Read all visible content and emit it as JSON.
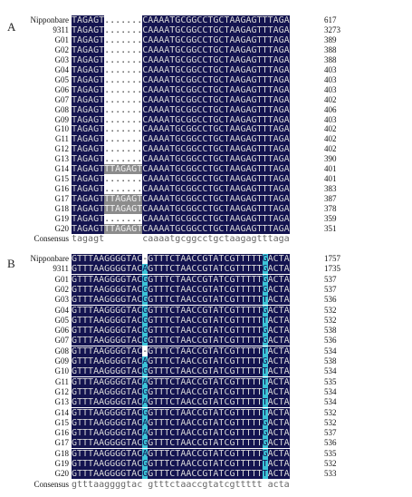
{
  "panel_a": {
    "label": "A",
    "rows": [
      {
        "name": "Nipponbare",
        "sequence": "TAGAGT.......CAAAATGCGGCCTGCTAAGAGTTTAGA",
        "length": 617
      },
      {
        "name": "9311",
        "sequence": "TAGAGT.......CAAAATGCGGCCTGCTAAGAGTTTAGA",
        "length": 3273
      },
      {
        "name": "G01",
        "sequence": "TAGAGT.......CAAAATGCGGCCTGCTAAGAGTTTAGA",
        "length": 389
      },
      {
        "name": "G02",
        "sequence": "TAGAGT.......CAAAATGCGGCCTGCTAAGAGTTTAGA",
        "length": 388
      },
      {
        "name": "G03",
        "sequence": "TAGAGT.......CAAAATGCGGCCTGCTAAGAGTTTAGA",
        "length": 388
      },
      {
        "name": "G04",
        "sequence": "TAGAGT.......CAAAATGCGGCCTGCTAAGAGTTTAGA",
        "length": 403
      },
      {
        "name": "G05",
        "sequence": "TAGAGT.......CAAAATGCGGCCTGCTAAGAGTTTAGA",
        "length": 403
      },
      {
        "name": "G06",
        "sequence": "TAGAGT.......CAAAATGCGGCCTGCTAAGAGTTTAGA",
        "length": 403
      },
      {
        "name": "G07",
        "sequence": "TAGAGT.......CAAAATGCGGCCTGCTAAGAGTTTAGA",
        "length": 402
      },
      {
        "name": "G08",
        "sequence": "TAGAGT.......CAAAATGCGGCCTGCTAAGAGTTTAGA",
        "length": 406
      },
      {
        "name": "G09",
        "sequence": "TAGAGT.......CAAAATGCGGCCTGCTAAGAGTTTAGA",
        "length": 403
      },
      {
        "name": "G10",
        "sequence": "TAGAGT.......CAAAATGCGGCCTGCTAAGAGTTTAGA",
        "length": 402
      },
      {
        "name": "G11",
        "sequence": "TAGAGT.......CAAAATGCGGCCTGCTAAGAGTTTAGA",
        "length": 402
      },
      {
        "name": "G12",
        "sequence": "TAGAGT.......CAAAATGCGGCCTGCTAAGAGTTTAGA",
        "length": 402
      },
      {
        "name": "G13",
        "sequence": "TAGAGT.......CAAAATGCGGCCTGCTAAGAGTTTAGA",
        "length": 390
      },
      {
        "name": "G14",
        "sequence": "TAGAGTTTAGAGTCAAAATGCGGCCTGCTAAGAGTTTAGA",
        "length": 401
      },
      {
        "name": "G15",
        "sequence": "TAGAGT.......CAAAATGCGGCCTGCTAAGAGTTTAGA",
        "length": 401
      },
      {
        "name": "G16",
        "sequence": "TAGAGT.......CAAAATGCGGCCTGCTAAGAGTTTAGA",
        "length": 383
      },
      {
        "name": "G17",
        "sequence": "TAGAGTTTAGAGTCAAAATGCGGCCTGCTAAGAGTTTAGA",
        "length": 387
      },
      {
        "name": "G18",
        "sequence": "TAGAGTTTAGAGTCAAAATGCGGCCTGCTAAGAGTTTAGA",
        "length": 378
      },
      {
        "name": "G19",
        "sequence": "TAGAGT.......CAAAATGCGGCCTGCTAAGAGTTTAGA",
        "length": 359
      },
      {
        "name": "G20",
        "sequence": "TAGAGTTTAGAGTCAAAATGCGGCCTGCTAAGAGTTTAGA",
        "length": 351
      }
    ],
    "consensus": {
      "name": "Consensus",
      "sequence": "tagagt       caaaatgcggcctgctaagagtttaga"
    }
  },
  "panel_b": {
    "label": "B",
    "rows": [
      {
        "name": "Nipponbare",
        "sequence": "GTTTAAGGGGTAC-GTTTCTAACCGTATCGTTTTTGACTA",
        "length": 1757
      },
      {
        "name": "9311",
        "sequence": "GTTTAAGGGGTACAGTTTCTAACCGTATCGTTTTTGACTA",
        "length": 1735
      },
      {
        "name": "G01",
        "sequence": "GTTTAAGGGGTACGGTTTCTAACCGTATCGTTTTTGACTA",
        "length": 537
      },
      {
        "name": "G02",
        "sequence": "GTTTAAGGGGTACGGTTTCTAACCGTATCGTTTTTGACTA",
        "length": 537
      },
      {
        "name": "G03",
        "sequence": "GTTTAAGGGGTACGGTTTCTAACCGTATCGTTTTTTACTA",
        "length": 536
      },
      {
        "name": "G04",
        "sequence": "GTTTAAGGGGTACGGTTTCTAACCGTATCGTTTTTGACTA",
        "length": 532
      },
      {
        "name": "G05",
        "sequence": "GTTTAAGGGGTACGGTTTCTAACCGTATCGTTTTTTACTA",
        "length": 532
      },
      {
        "name": "G06",
        "sequence": "GTTTAAGGGGTACGGTTTCTAACCGTATCGTTTTTGACTA",
        "length": 538
      },
      {
        "name": "G07",
        "sequence": "GTTTAAGGGGTACGGTTTCTAACCGTATCGTTTTTGACTA",
        "length": 536
      },
      {
        "name": "G08",
        "sequence": "GTTTAAGGGGTAC-GTTTCTAACCGTATCGTTTTTTACTA",
        "length": 534
      },
      {
        "name": "G09",
        "sequence": "GTTTAAGGGGTACAGTTTCTAACCGTATCGTTTTTGACTA",
        "length": 538
      },
      {
        "name": "G10",
        "sequence": "GTTTAAGGGGTACGGTTTCTAACCGTATCGTTTTTTACTA",
        "length": 534
      },
      {
        "name": "G11",
        "sequence": "GTTTAAGGGGTACAGTTTCTAACCGTATCGTTTTTTACTA",
        "length": 535
      },
      {
        "name": "G12",
        "sequence": "GTTTAAGGGGTACGGTTTCTAACCGTATCGTTTTTTACTA",
        "length": 534
      },
      {
        "name": "G13",
        "sequence": "GTTTAAGGGGTACAGTTTCTAACCGTATCGTTTTTTACTA",
        "length": 534
      },
      {
        "name": "G14",
        "sequence": "GTTTAAGGGGTACGGTTTCTAACCGTATCGTTTTTTACTA",
        "length": 532
      },
      {
        "name": "G15",
        "sequence": "GTTTAAGGGGTACAGTTTCTAACCGTATCGTTTTTGACTA",
        "length": 532
      },
      {
        "name": "G16",
        "sequence": "GTTTAAGGGGTACAGTTTCTAACCGTATCGTTTTTGACTA",
        "length": 537
      },
      {
        "name": "G17",
        "sequence": "GTTTAAGGGGTACGGTTTCTAACCGTATCGTTTTTGACTA",
        "length": 536
      },
      {
        "name": "G18",
        "sequence": "GTTTAAGGGGTACAGTTTCTAACCGTATCGTTTTTGACTA",
        "length": 535
      },
      {
        "name": "G19",
        "sequence": "GTTTAAGGGGTACGGTTTCTAACCGTATCGTTTTTTACTA",
        "length": 532
      },
      {
        "name": "G20",
        "sequence": "GTTTAAGGGGTACGGTTTCTAACCGTATCGTTTTTTACTA",
        "length": 533
      }
    ],
    "consensus": {
      "name": "Consensus",
      "sequence": "gtttaaggggtac gtttctaaccgtatcgttttt acta"
    }
  }
}
